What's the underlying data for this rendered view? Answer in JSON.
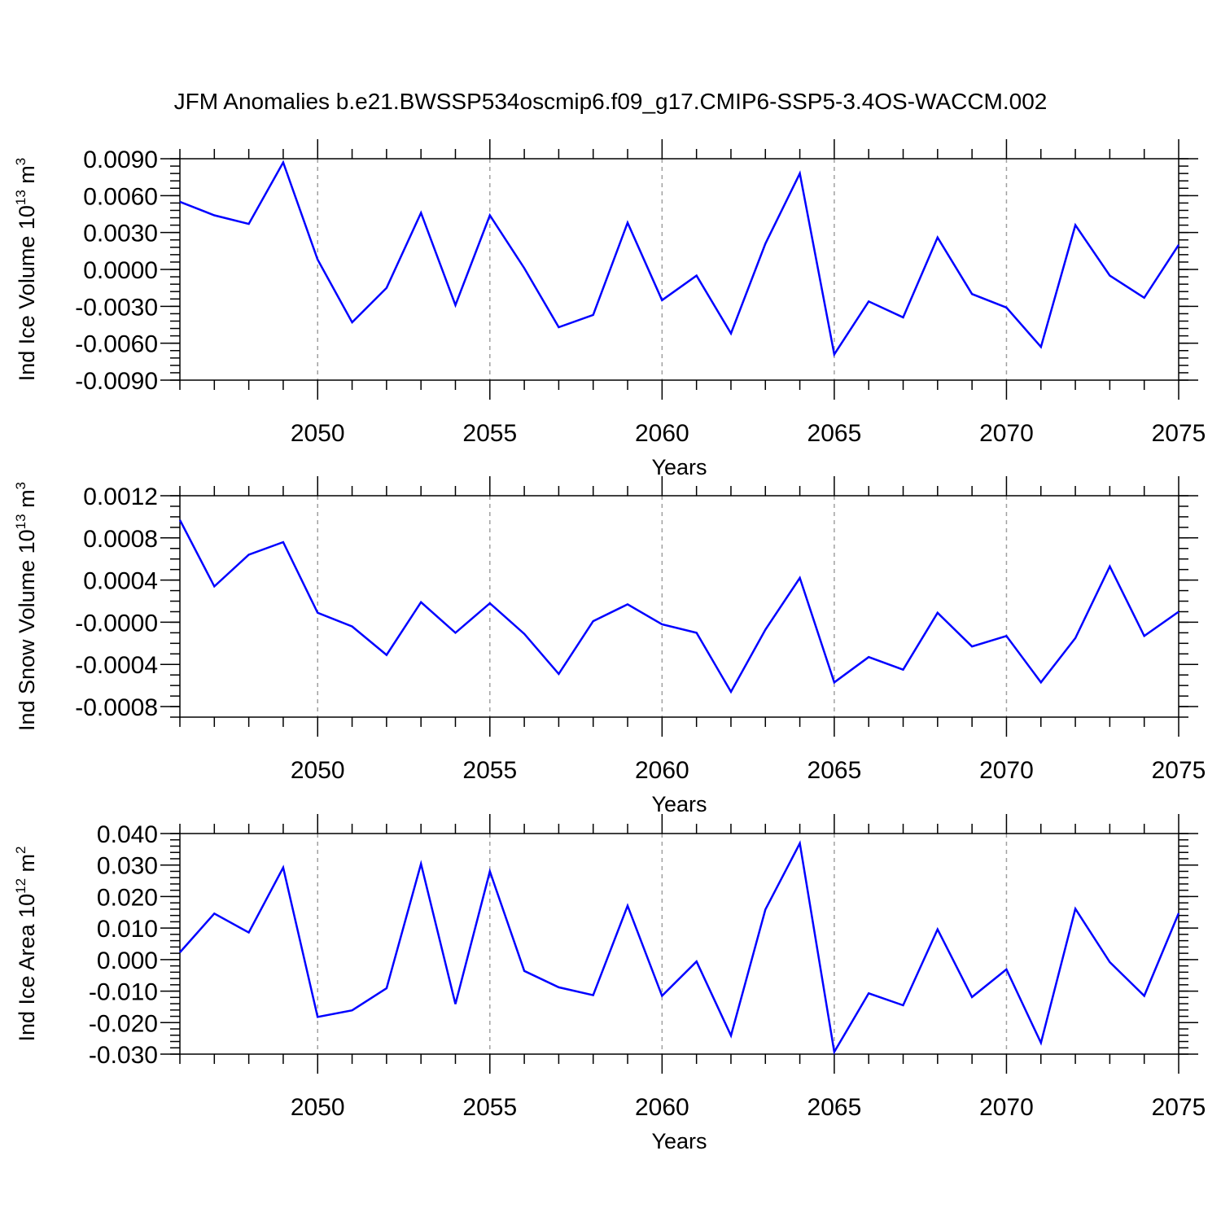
{
  "title": "JFM Anomalies b.e21.BWSSP534oscmip6.f09_g17.CMIP6-SSP5-3.4OS-WACCM.002",
  "colors": {
    "line": "#0000ff",
    "axis": "#000000",
    "grid": "#a0a0a0"
  },
  "chart_data": [
    {
      "type": "line",
      "ylabel_main": "Ind Ice Volume 10",
      "ylabel_exp": "13",
      "ylabel_unit": " m",
      "ylabel_unit_exp": "3",
      "xlabel": "Years",
      "xlim": [
        2046,
        2075
      ],
      "ylim": [
        -0.009,
        0.009
      ],
      "x_ticks": [
        2050,
        2055,
        2060,
        2065,
        2070,
        2075
      ],
      "x_tick_labels": [
        "2050",
        "2055",
        "2060",
        "2065",
        "2070",
        "2075"
      ],
      "y_ticks": [
        0.009,
        0.006,
        0.003,
        0.0,
        -0.003,
        -0.006,
        -0.009
      ],
      "y_tick_labels": [
        "0.0090",
        "0.0060",
        "0.0030",
        "0.0000",
        "-0.0030",
        "-0.0060",
        "-0.0090"
      ],
      "y_minor_step": 0.0006,
      "grid": "dashed vertical at major x ticks",
      "series": [
        {
          "x": [
            2046,
            2047,
            2048,
            2049,
            2050,
            2051,
            2052,
            2053,
            2054,
            2055,
            2056,
            2057,
            2058,
            2059,
            2060,
            2061,
            2062,
            2063,
            2064,
            2065,
            2066,
            2067,
            2068,
            2069,
            2070,
            2071,
            2072,
            2073,
            2074,
            2075
          ],
          "values": [
            0.0055,
            0.0044,
            0.0037,
            0.0087,
            0.0008,
            -0.0043,
            -0.0015,
            0.0046,
            -0.0029,
            0.0044,
            0.0001,
            -0.0047,
            -0.0037,
            0.0038,
            -0.0025,
            -0.0005,
            -0.0052,
            0.0021,
            0.0078,
            -0.0069,
            -0.0026,
            -0.0039,
            0.0026,
            -0.002,
            -0.0031,
            -0.0063,
            0.0036,
            -0.0005,
            -0.0023,
            0.002
          ]
        }
      ]
    },
    {
      "type": "line",
      "ylabel_main": "Ind Snow Volume 10",
      "ylabel_exp": "13",
      "ylabel_unit": " m",
      "ylabel_unit_exp": "3",
      "xlabel": "Years",
      "xlim": [
        2046,
        2075
      ],
      "ylim": [
        -0.0009,
        0.0012
      ],
      "x_ticks": [
        2050,
        2055,
        2060,
        2065,
        2070,
        2075
      ],
      "x_tick_labels": [
        "2050",
        "2055",
        "2060",
        "2065",
        "2070",
        "2075"
      ],
      "y_ticks": [
        0.0012,
        0.0008,
        0.0004,
        0.0,
        -0.0004,
        -0.0008
      ],
      "y_tick_labels": [
        "0.0012",
        "0.0008",
        "0.0004",
        "-0.0000",
        "-0.0004",
        "-0.0008"
      ],
      "y_minor_step": 0.0001,
      "grid": "dashed vertical at major x ticks",
      "series": [
        {
          "x": [
            2046,
            2047,
            2048,
            2049,
            2050,
            2051,
            2052,
            2053,
            2054,
            2055,
            2056,
            2057,
            2058,
            2059,
            2060,
            2061,
            2062,
            2063,
            2064,
            2065,
            2066,
            2067,
            2068,
            2069,
            2070,
            2071,
            2072,
            2073,
            2074,
            2075
          ],
          "values": [
            0.00097,
            0.00034,
            0.00064,
            0.00076,
            9e-05,
            -4e-05,
            -0.00031,
            0.00019,
            -0.0001,
            0.00018,
            -0.00011,
            -0.00049,
            1e-05,
            0.00017,
            -2e-05,
            -0.0001,
            -0.00066,
            -7e-05,
            0.00042,
            -0.00057,
            -0.00033,
            -0.00045,
            9e-05,
            -0.00023,
            -0.00013,
            -0.00057,
            -0.00015,
            0.00053,
            -0.00013,
            0.0001
          ]
        }
      ]
    },
    {
      "type": "line",
      "ylabel_main": "Ind Ice Area 10",
      "ylabel_exp": "12",
      "ylabel_unit": " m",
      "ylabel_unit_exp": "2",
      "xlabel": "Years",
      "xlim": [
        2046,
        2075
      ],
      "ylim": [
        -0.03,
        0.04
      ],
      "x_ticks": [
        2050,
        2055,
        2060,
        2065,
        2070,
        2075
      ],
      "x_tick_labels": [
        "2050",
        "2055",
        "2060",
        "2065",
        "2070",
        "2075"
      ],
      "y_ticks": [
        0.04,
        0.03,
        0.02,
        0.01,
        0.0,
        -0.01,
        -0.02,
        -0.03
      ],
      "y_tick_labels": [
        "0.040",
        "0.030",
        "0.020",
        "0.010",
        "0.000",
        "-0.010",
        "-0.020",
        "-0.030"
      ],
      "y_minor_step": 0.002,
      "grid": "dashed vertical at major x ticks",
      "series": [
        {
          "x": [
            2046,
            2047,
            2048,
            2049,
            2050,
            2051,
            2052,
            2053,
            2054,
            2055,
            2056,
            2057,
            2058,
            2059,
            2060,
            2061,
            2062,
            2063,
            2064,
            2065,
            2066,
            2067,
            2068,
            2069,
            2070,
            2071,
            2072,
            2073,
            2074,
            2075
          ],
          "values": [
            0.0023,
            0.0146,
            0.0086,
            0.0292,
            -0.0182,
            -0.0161,
            -0.0091,
            0.0304,
            -0.0141,
            0.028,
            -0.0036,
            -0.0088,
            -0.0113,
            0.0171,
            -0.0115,
            -0.0006,
            -0.0241,
            0.0159,
            0.0369,
            -0.0293,
            -0.0107,
            -0.0145,
            0.0096,
            -0.0119,
            -0.0031,
            -0.0264,
            0.0161,
            -0.0008,
            -0.0115,
            0.0147
          ]
        }
      ]
    }
  ]
}
